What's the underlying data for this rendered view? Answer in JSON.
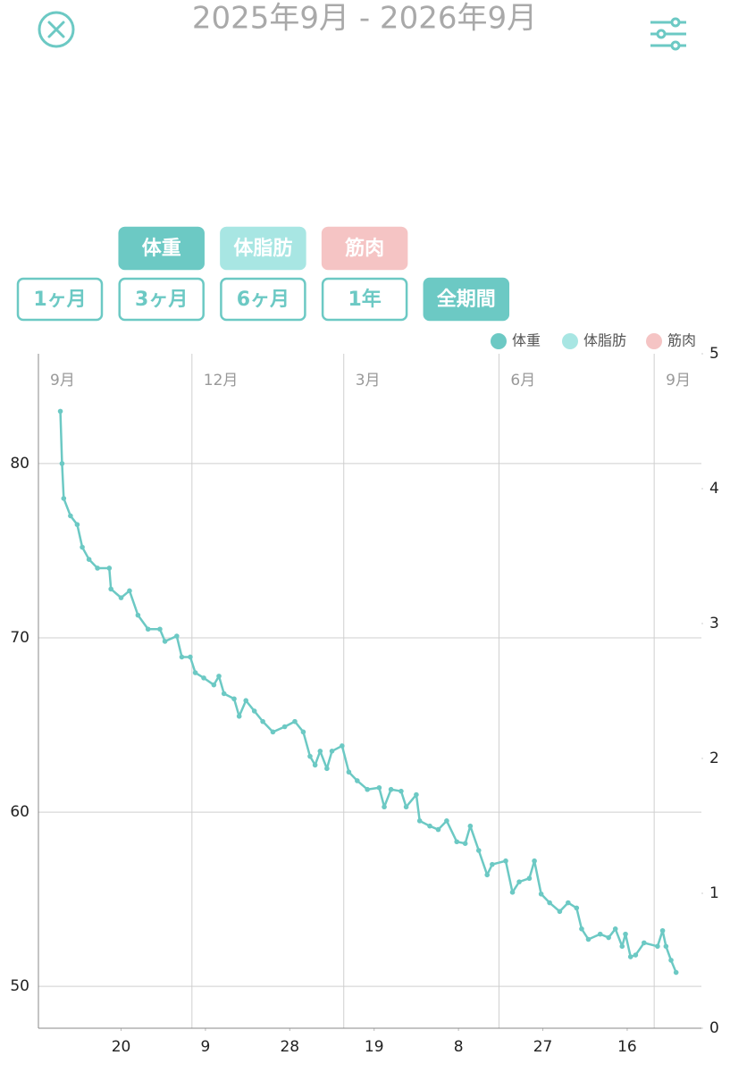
{
  "header": {
    "title": "2025年9月 - 2026年9月"
  },
  "metric_buttons": [
    {
      "label": "体重",
      "color": "#6cc9c4",
      "active": true
    },
    {
      "label": "体脂肪",
      "color": "#a8e6e3",
      "active": true
    },
    {
      "label": "筋肉",
      "color": "#f5c4c4",
      "active": true
    }
  ],
  "period_buttons": [
    {
      "label": "1ヶ月",
      "active": false
    },
    {
      "label": "3ヶ月",
      "active": false
    },
    {
      "label": "6ヶ月",
      "active": false
    },
    {
      "label": "1年",
      "active": false
    },
    {
      "label": "全期間",
      "active": true
    }
  ],
  "chart_data": {
    "type": "line",
    "legend": [
      {
        "name": "体重",
        "color": "#6cc9c4"
      },
      {
        "name": "体脂肪",
        "color": "#a8e6e3"
      },
      {
        "name": "筋肉",
        "color": "#f5c4c4"
      }
    ],
    "x": [
      "2025-09-14",
      "2025-09-15",
      "2025-09-16",
      "2025-09-20",
      "2025-09-24",
      "2025-09-27",
      "2025-10-01",
      "2025-10-06",
      "2025-10-13",
      "2025-10-14",
      "2025-10-20",
      "2025-10-25",
      "2025-10-30",
      "2025-11-05",
      "2025-11-12",
      "2025-11-15",
      "2025-11-22",
      "2025-11-25",
      "2025-11-30",
      "2025-12-03",
      "2025-12-08",
      "2025-12-14",
      "2025-12-17",
      "2025-12-20",
      "2025-12-26",
      "2025-12-29",
      "2026-01-02",
      "2026-01-07",
      "2026-01-12",
      "2026-01-18",
      "2026-01-25",
      "2026-01-31",
      "2026-02-05",
      "2026-02-09",
      "2026-02-12",
      "2026-02-15",
      "2026-02-19",
      "2026-02-22",
      "2026-02-28",
      "2026-03-04",
      "2026-03-09",
      "2026-03-15",
      "2026-03-22",
      "2026-03-25",
      "2026-03-29",
      "2026-04-04",
      "2026-04-07",
      "2026-04-13",
      "2026-04-15",
      "2026-04-21",
      "2026-04-26",
      "2026-05-01",
      "2026-05-07",
      "2026-05-12",
      "2026-05-15",
      "2026-05-20",
      "2026-05-25",
      "2026-05-28",
      "2026-06-05",
      "2026-06-09",
      "2026-06-13",
      "2026-06-19",
      "2026-06-22",
      "2026-06-26",
      "2026-07-01",
      "2026-07-07",
      "2026-07-12",
      "2026-07-17",
      "2026-07-20",
      "2026-07-24",
      "2026-07-31",
      "2026-08-05",
      "2026-08-09",
      "2026-08-13",
      "2026-08-15",
      "2026-08-18",
      "2026-08-21",
      "2026-08-26",
      "2026-09-03",
      "2026-09-06",
      "2026-09-08",
      "2026-09-11",
      "2026-09-14"
    ],
    "series": [
      {
        "name": "体重",
        "color": "#6cc9c4",
        "values": [
          83.0,
          80.0,
          78.0,
          77.0,
          76.5,
          75.2,
          74.5,
          74.0,
          74.0,
          72.8,
          72.3,
          72.7,
          71.3,
          70.5,
          70.5,
          69.8,
          70.1,
          68.9,
          68.9,
          68.0,
          67.7,
          67.3,
          67.8,
          66.8,
          66.5,
          65.5,
          66.4,
          65.8,
          65.2,
          64.6,
          64.9,
          65.2,
          64.6,
          63.2,
          62.7,
          63.5,
          62.5,
          63.5,
          63.8,
          62.3,
          61.8,
          61.3,
          61.4,
          60.3,
          61.3,
          61.2,
          60.3,
          61.0,
          59.5,
          59.2,
          59.0,
          59.5,
          58.3,
          58.2,
          59.2,
          57.8,
          56.4,
          57.0,
          57.2,
          55.4,
          56.0,
          56.2,
          57.2,
          55.3,
          54.8,
          54.3,
          54.8,
          54.5,
          53.3,
          52.7,
          53.0,
          52.8,
          53.3,
          52.3,
          53.0,
          51.7,
          51.8,
          52.5,
          52.3,
          53.2,
          52.3,
          51.5,
          50.8
        ]
      }
    ],
    "xlim": [
      "2025-09-01",
      "2026-09-29"
    ],
    "month_ticks": [
      {
        "value": "2025-09-01",
        "label": "9月"
      },
      {
        "value": "2025-12-01",
        "label": "12月"
      },
      {
        "value": "2026-03-01",
        "label": "3月"
      },
      {
        "value": "2026-06-01",
        "label": "6月"
      },
      {
        "value": "2026-09-01",
        "label": "9月"
      }
    ],
    "xticks": [
      {
        "value": "2025-10-20",
        "label": "20"
      },
      {
        "value": "2025-12-09",
        "label": "9"
      },
      {
        "value": "2026-01-28",
        "label": "28"
      },
      {
        "value": "2026-03-19",
        "label": "19"
      },
      {
        "value": "2026-05-08",
        "label": "8"
      },
      {
        "value": "2026-06-27",
        "label": "27"
      },
      {
        "value": "2026-08-16",
        "label": "16"
      }
    ],
    "ylim": [
      47.6,
      86.3
    ],
    "yticks": [
      50,
      60,
      70,
      80
    ],
    "y2lim": [
      0,
      5
    ],
    "y2ticks": [
      0,
      1,
      2,
      3,
      4,
      5
    ],
    "grid": true
  }
}
